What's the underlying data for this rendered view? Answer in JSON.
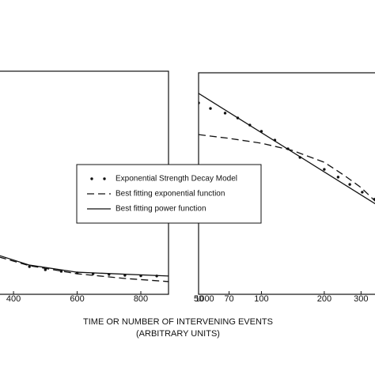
{
  "chart_data": [
    {
      "type": "line",
      "xlim": [
        355,
        887
      ],
      "ylim": [
        0,
        1
      ],
      "xticks": [
        400,
        600,
        800,
        1000
      ],
      "xlabel": "TIME  OR  NUMBER OF INTERVENING EVENTS",
      "xlabel_sub": "(ARBITRARY UNITS)",
      "series": [
        {
          "name": "Exponential Strength Decay Model",
          "style": "dots",
          "color": "#111111",
          "x": [
            450,
            500,
            550,
            600,
            650,
            700,
            750,
            800,
            850
          ],
          "values": [
            0.124,
            0.11,
            0.103,
            0.096,
            0.092,
            0.089,
            0.085,
            0.083,
            0.082
          ]
        },
        {
          "name": "Best fitting exponential function",
          "style": "dashed",
          "color": "#111111",
          "x": [
            355,
            450,
            600,
            750,
            887
          ],
          "values": [
            0.167,
            0.128,
            0.092,
            0.071,
            0.057
          ]
        },
        {
          "name": "Best fitting power function",
          "style": "solid",
          "color": "#111111",
          "x": [
            355,
            450,
            600,
            887
          ],
          "values": [
            0.174,
            0.131,
            0.099,
            0.082
          ]
        }
      ]
    },
    {
      "type": "line",
      "xscale": "log",
      "xlim": [
        50,
        353
      ],
      "ylim": [
        0,
        1
      ],
      "xticks": [
        50,
        70,
        100,
        200,
        300
      ],
      "series": [
        {
          "style": "dots",
          "color": "#111111",
          "x": [
            50,
            57,
            67,
            77,
            88,
            100,
            116,
            134,
            153,
            200,
            233,
            265,
            304,
            348
          ],
          "values": [
            0.864,
            0.839,
            0.818,
            0.796,
            0.764,
            0.736,
            0.696,
            0.657,
            0.618,
            0.564,
            0.529,
            0.496,
            0.461,
            0.429
          ]
        },
        {
          "style": "dashed",
          "color": "#111111",
          "x": [
            50,
            70,
            100,
            140,
            200,
            250,
            300,
            353
          ],
          "values": [
            0.721,
            0.704,
            0.682,
            0.65,
            0.596,
            0.536,
            0.482,
            0.418
          ]
        },
        {
          "style": "solid",
          "color": "#111111",
          "x": [
            50,
            353
          ],
          "values": [
            0.907,
            0.407
          ]
        }
      ]
    }
  ]
}
